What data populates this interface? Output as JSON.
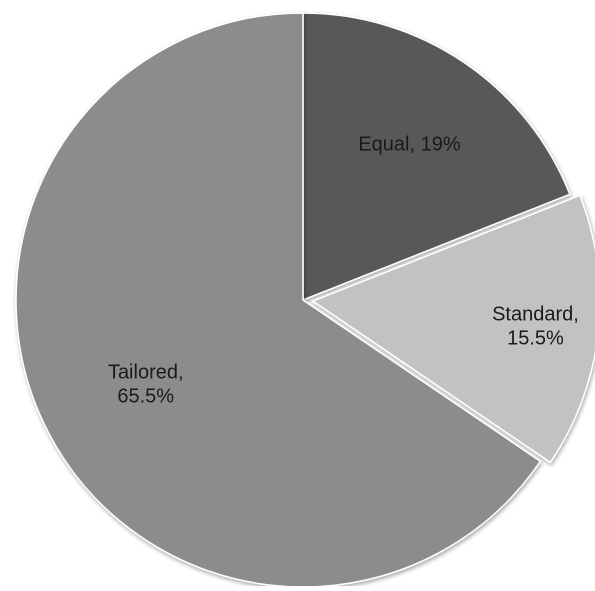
{
  "chart_data": {
    "type": "pie",
    "title": "",
    "start_angle_deg": 0,
    "direction": "clockwise",
    "legend": "none",
    "slices": [
      {
        "category": "Equal",
        "value": 19,
        "label_lines": [
          "Equal, 19%"
        ],
        "color": "#595959",
        "exploded": false
      },
      {
        "category": "Standard",
        "value": 15.5,
        "label_lines": [
          "Standard,",
          "15.5%"
        ],
        "color": "#c2c2c2",
        "exploded": true
      },
      {
        "category": "Tailored",
        "value": 65.5,
        "label_lines": [
          "Tailored,",
          "65.5%"
        ],
        "color": "#8c8c8c",
        "exploded": false
      }
    ]
  }
}
